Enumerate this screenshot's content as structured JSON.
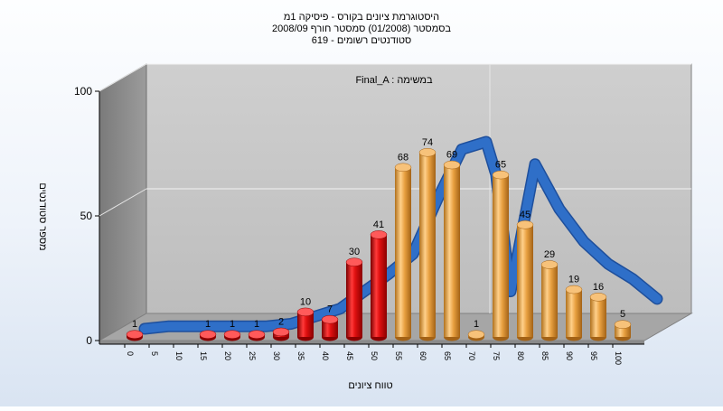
{
  "chart_data": {
    "type": "bar",
    "title_lines": [
      "היסטוגרמת ציונים בקורס - פיסיקה 1מ",
      "בסמסטר  (01/2008)  סמסטר חורף 2008/09",
      "619 - סטודנטים רשומים"
    ],
    "annotation": "Final_A : במשימה",
    "xlabel": "טווח ציונים",
    "ylabel": "מספר סטודנטים",
    "ylim": [
      0,
      100
    ],
    "y_ticks": [
      "0",
      "50",
      "100"
    ],
    "x_tick_labels": [
      "0",
      "5",
      "10",
      "15",
      "20",
      "25",
      "30",
      "35",
      "40",
      "45",
      "50",
      "55",
      "60",
      "65",
      "70",
      "75",
      "80",
      "85",
      "90",
      "95",
      "100"
    ],
    "bins": [
      0,
      15,
      20,
      25,
      30,
      35,
      40,
      45,
      50,
      55,
      60,
      65,
      70,
      75,
      80,
      85,
      90,
      95,
      100
    ],
    "values": [
      1,
      1,
      1,
      1,
      2,
      10,
      7,
      30,
      41,
      68,
      74,
      69,
      1,
      65,
      45,
      29,
      19,
      16,
      5
    ],
    "value_labels": [
      "1",
      "1",
      "1",
      "1",
      "2",
      "10",
      "7",
      "30",
      "41",
      "68",
      "74",
      "69",
      "1",
      "65",
      "45",
      "29",
      "19",
      "16",
      "5"
    ],
    "fail_threshold": 55,
    "curve": {
      "x": [
        0,
        5,
        10,
        15,
        20,
        25,
        30,
        35,
        40,
        45,
        50,
        55,
        60,
        65,
        70,
        72,
        75,
        80,
        85,
        90,
        95,
        100,
        105
      ],
      "y": [
        0,
        1,
        1,
        1,
        1,
        1,
        2,
        5,
        8,
        15,
        22,
        30,
        52,
        72,
        75,
        62,
        15,
        66,
        48,
        35,
        26,
        20,
        12
      ]
    },
    "colors": {
      "fail_bar": "#e01010",
      "pass_bar": "#e8a040",
      "curve": "#2f6fc8",
      "wall": "#c3c3c3",
      "side_wall": "#8c8c8c",
      "floor": "#a6a6a6"
    }
  }
}
